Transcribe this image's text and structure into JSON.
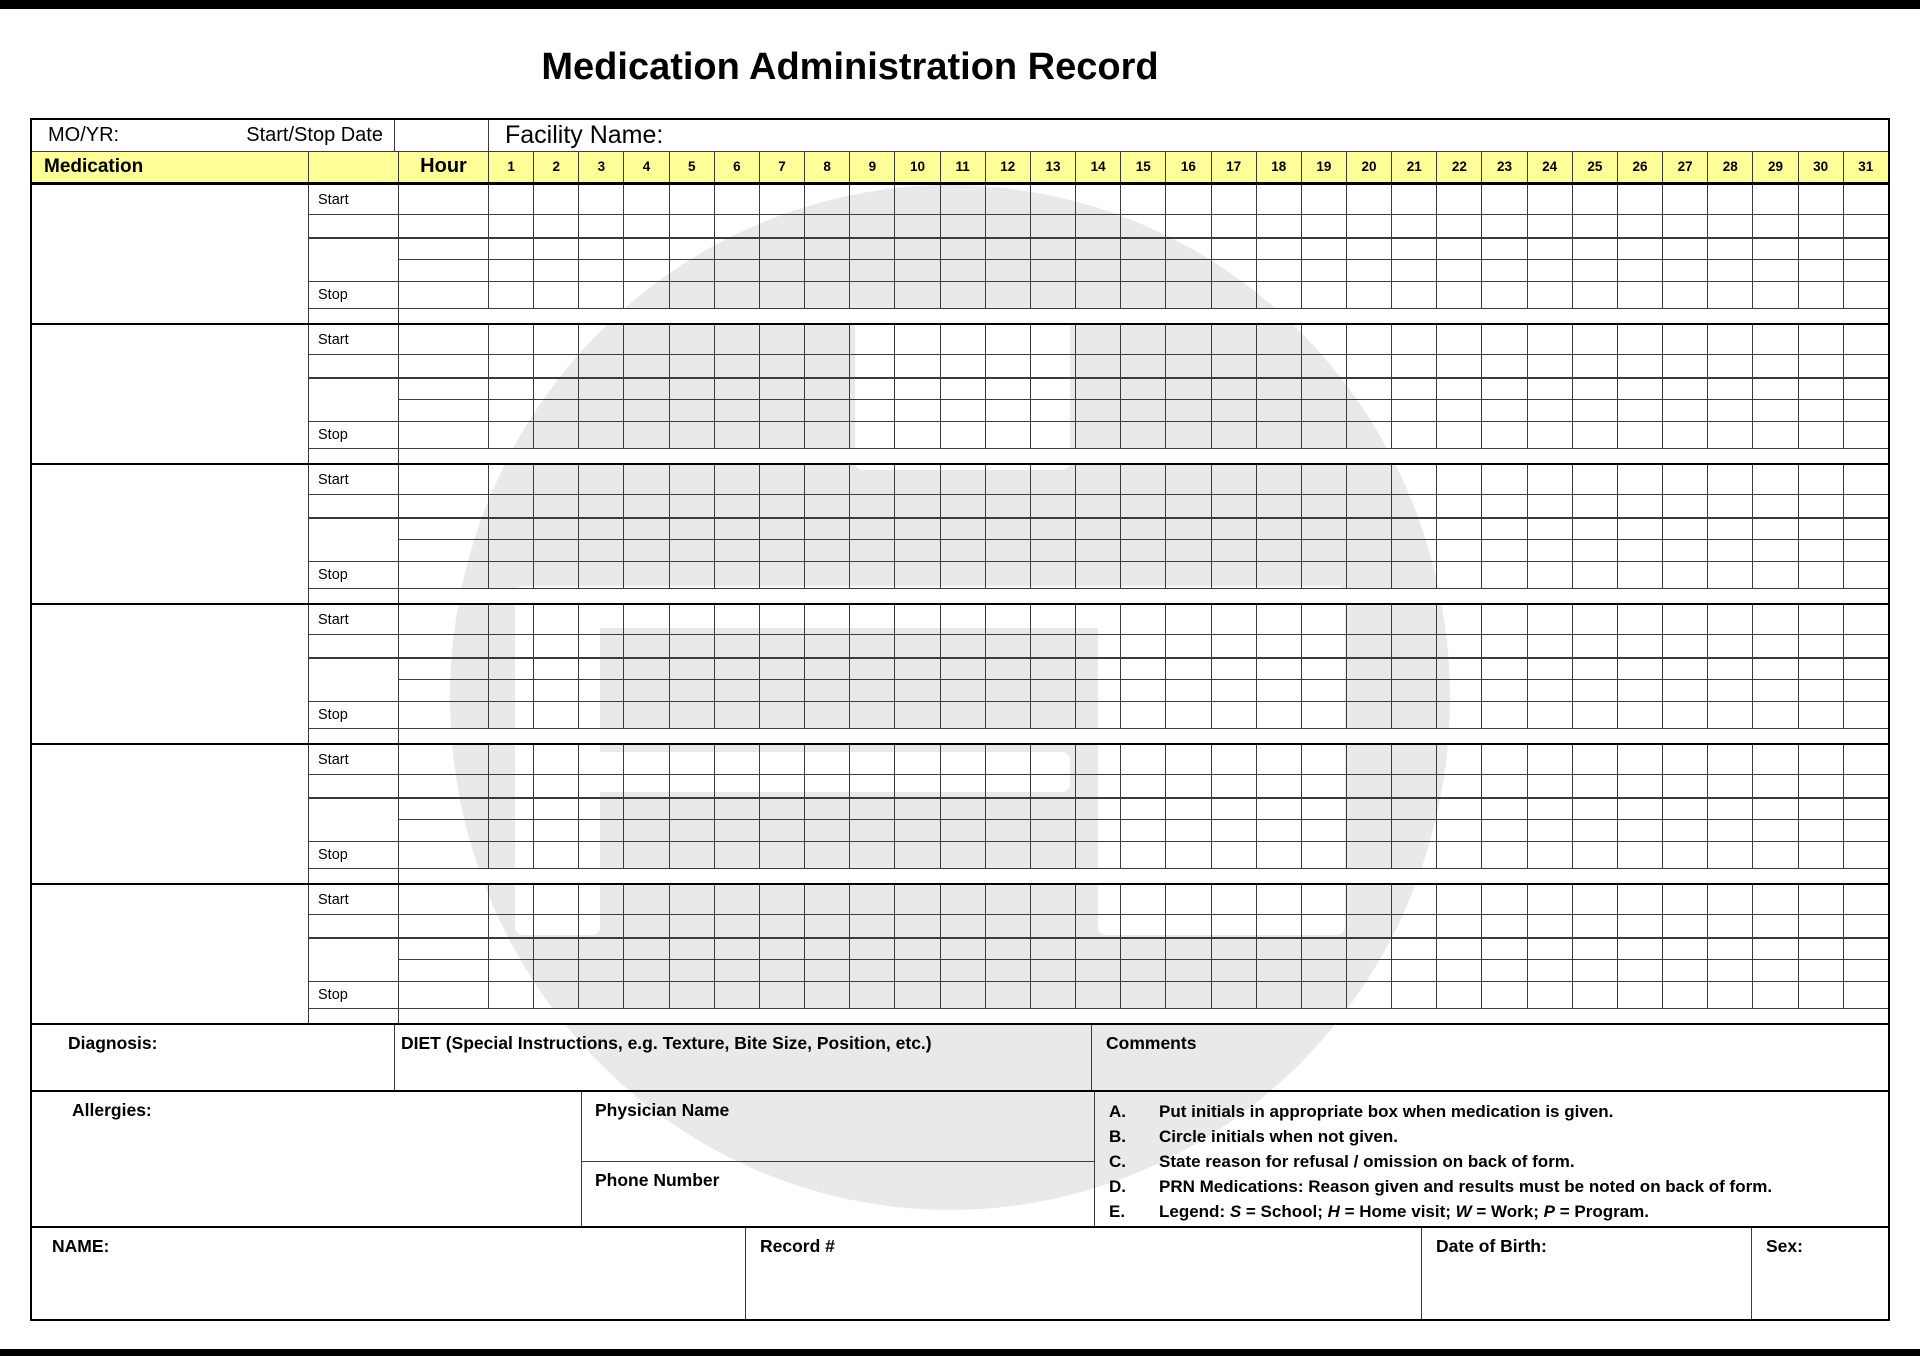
{
  "page": {
    "title": "Medication Administration Record"
  },
  "colors": {
    "header_yellow": "#FFFF99",
    "watermark_gray": "#E9E9E9",
    "grid_line": "#3B3B3B"
  },
  "top_header": {
    "mo_yr_label": "MO/YR:",
    "start_stop_date_label": "Start/Stop Date",
    "facility_label": "Facility Name:"
  },
  "columns": {
    "medication_header": "Medication",
    "hour_header": "Hour",
    "days": [
      "1",
      "2",
      "3",
      "4",
      "5",
      "6",
      "7",
      "8",
      "9",
      "10",
      "11",
      "12",
      "13",
      "14",
      "15",
      "16",
      "17",
      "18",
      "19",
      "20",
      "21",
      "22",
      "23",
      "24",
      "25",
      "26",
      "27",
      "28",
      "29",
      "30",
      "31"
    ]
  },
  "blocks": {
    "count": 6,
    "start_label": "Start",
    "stop_label": "Stop"
  },
  "sections": {
    "diagnosis_label": "Diagnosis:",
    "diet_label": "DIET (Special Instructions, e.g. Texture, Bite Size, Position, etc.)",
    "comments_label": "Comments",
    "allergies_label": "Allergies:",
    "physician_name_label": "Physician Name",
    "phone_number_label": "Phone Number"
  },
  "instructions": [
    {
      "letter": "A.",
      "text": "Put initials in appropriate box when medication is given."
    },
    {
      "letter": "B.",
      "text": "Circle initials when not given."
    },
    {
      "letter": "C.",
      "text": "State reason for refusal / omission on back of form."
    },
    {
      "letter": "D.",
      "text": "PRN Medications: Reason given and results must be noted on back of form."
    },
    {
      "letter": "E.",
      "segments": [
        {
          "text": "Legend:  "
        },
        {
          "text": "S",
          "italic": true
        },
        {
          "text": " = School; "
        },
        {
          "text": "H",
          "italic": true
        },
        {
          "text": " = Home visit; "
        },
        {
          "text": "W",
          "italic": true
        },
        {
          "text": " = Work; "
        },
        {
          "text": "P",
          "italic": true
        },
        {
          "text": " = Program."
        }
      ]
    }
  ],
  "footer": {
    "name_label": "NAME:",
    "record_label": "Record #",
    "dob_label": "Date of Birth:",
    "sex_label": "Sex:"
  }
}
